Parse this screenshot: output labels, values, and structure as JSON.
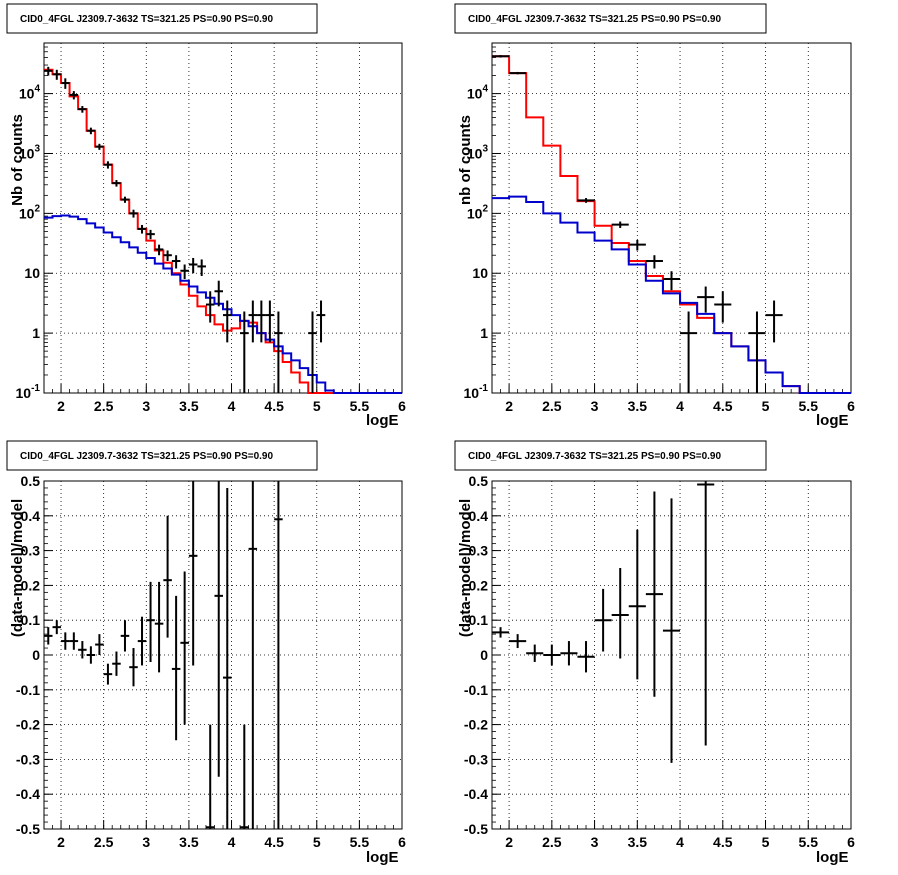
{
  "chart_data": [
    {
      "type": "histogram",
      "title": "CID0_4FGL J2309.7-3632 TS=321.25 PS=0.90 PS=0.90",
      "xlabel": "logE",
      "ylabel": "Nb of counts",
      "yscale": "log",
      "xlim": [
        1.8,
        6.0
      ],
      "ylim": [
        0.1,
        70000
      ],
      "x_ticks": [
        "2",
        "2.5",
        "3",
        "3.5",
        "4",
        "4.5",
        "5",
        "5.5",
        "6"
      ],
      "y_ticks": [
        "10^-1",
        "1",
        "10",
        "10^2",
        "10^3",
        "10^4"
      ],
      "grid": true,
      "bin_edges": [
        1.8,
        1.9,
        2.0,
        2.1,
        2.2,
        2.3,
        2.4,
        2.5,
        2.6,
        2.7,
        2.8,
        2.9,
        3.0,
        3.1,
        3.2,
        3.3,
        3.4,
        3.5,
        3.6,
        3.7,
        3.8,
        3.9,
        4.0,
        4.1,
        4.2,
        4.3,
        4.4,
        4.5,
        4.6,
        4.7,
        4.8,
        4.9,
        5.0,
        5.1,
        5.2,
        5.3,
        5.4,
        5.5,
        5.6,
        5.7,
        5.8,
        5.9,
        6.0
      ],
      "series": [
        {
          "color": "#ff0000",
          "values": [
            25000,
            21000,
            15000,
            9000,
            5500,
            2400,
            1300,
            650,
            320,
            170,
            100,
            55,
            35,
            24,
            15,
            10,
            6.5,
            4.2,
            2.8,
            2.0,
            1.4,
            1.1,
            1.2,
            1.6,
            1.5,
            1.0,
            0.7,
            0.5,
            0.33,
            0.22,
            0.15,
            0.1,
            0.1,
            0.1,
            0.1,
            0.1,
            0.1,
            0.1,
            0.1,
            0.1,
            0.1,
            0.1
          ]
        },
        {
          "color": "#0000cc",
          "values": [
            85,
            90,
            92,
            88,
            80,
            68,
            58,
            48,
            40,
            33,
            27,
            22,
            18,
            14.5,
            12,
            9.5,
            7.5,
            6,
            4.8,
            3.9,
            3.1,
            2.5,
            2.0,
            1.6,
            1.3,
            1.0,
            0.78,
            0.6,
            0.46,
            0.35,
            0.26,
            0.2,
            0.15,
            0.11,
            0.1,
            0.1,
            0.1,
            0.1,
            0.1,
            0.1,
            0.1,
            0.1
          ]
        }
      ],
      "data_points": [
        {
          "x": 1.85,
          "y": 24000,
          "lo": 20000,
          "hi": 28000
        },
        {
          "x": 1.95,
          "y": 21000,
          "lo": 17000,
          "hi": 25000
        },
        {
          "x": 2.05,
          "y": 15000,
          "lo": 12000,
          "hi": 18000
        },
        {
          "x": 2.15,
          "y": 9500,
          "lo": 8000,
          "hi": 11000
        },
        {
          "x": 2.25,
          "y": 5500,
          "lo": 4800,
          "hi": 6200
        },
        {
          "x": 2.35,
          "y": 2400,
          "lo": 2100,
          "hi": 2700
        },
        {
          "x": 2.45,
          "y": 1300,
          "lo": 1150,
          "hi": 1450
        },
        {
          "x": 2.55,
          "y": 650,
          "lo": 560,
          "hi": 740
        },
        {
          "x": 2.65,
          "y": 320,
          "lo": 280,
          "hi": 360
        },
        {
          "x": 2.75,
          "y": 170,
          "lo": 150,
          "hi": 190
        },
        {
          "x": 2.85,
          "y": 100,
          "lo": 85,
          "hi": 115
        },
        {
          "x": 2.95,
          "y": 55,
          "lo": 46,
          "hi": 64
        },
        {
          "x": 3.05,
          "y": 45,
          "lo": 37,
          "hi": 53
        },
        {
          "x": 3.15,
          "y": 25,
          "lo": 20,
          "hi": 30
        },
        {
          "x": 3.25,
          "y": 20,
          "lo": 16,
          "hi": 24
        },
        {
          "x": 3.35,
          "y": 16,
          "lo": 12,
          "hi": 20
        },
        {
          "x": 3.45,
          "y": 11,
          "lo": 8,
          "hi": 14
        },
        {
          "x": 3.55,
          "y": 14,
          "lo": 10,
          "hi": 18
        },
        {
          "x": 3.65,
          "y": 13,
          "lo": 9,
          "hi": 17
        },
        {
          "x": 3.75,
          "y": 3,
          "lo": 1.5,
          "hi": 5
        },
        {
          "x": 3.85,
          "y": 5,
          "lo": 2.8,
          "hi": 7.5
        },
        {
          "x": 3.95,
          "y": 2,
          "lo": 0.7,
          "hi": 3.5
        },
        {
          "x": 4.15,
          "y": 1,
          "lo": 0.1,
          "hi": 2.3
        },
        {
          "x": 4.25,
          "y": 2,
          "lo": 0.7,
          "hi": 3.5
        },
        {
          "x": 4.35,
          "y": 2,
          "lo": 0.7,
          "hi": 3.5
        },
        {
          "x": 4.45,
          "y": 2,
          "lo": 0.7,
          "hi": 3.5
        },
        {
          "x": 4.55,
          "y": 1,
          "lo": 0.1,
          "hi": 2.3
        },
        {
          "x": 4.95,
          "y": 1,
          "lo": 0.1,
          "hi": 2.3
        },
        {
          "x": 5.05,
          "y": 2,
          "lo": 0.7,
          "hi": 3.5
        }
      ]
    },
    {
      "type": "histogram",
      "title": "CID0_4FGL J2309.7-3632 TS=321.25 PS=0.90 PS=0.90",
      "xlabel": "logE",
      "ylabel": "nb of counts",
      "yscale": "log",
      "xlim": [
        1.8,
        6.0
      ],
      "ylim": [
        0.1,
        70000
      ],
      "x_ticks": [
        "2",
        "2.5",
        "3",
        "3.5",
        "4",
        "4.5",
        "5",
        "5.5",
        "6"
      ],
      "y_ticks": [
        "10^-1",
        "1",
        "10",
        "10^2",
        "10^3",
        "10^4"
      ],
      "grid": true,
      "bin_edges": [
        1.8,
        2.0,
        2.2,
        2.4,
        2.6,
        2.8,
        3.0,
        3.2,
        3.4,
        3.6,
        3.8,
        4.0,
        4.2,
        4.4,
        4.6,
        4.8,
        5.0,
        5.2,
        5.4,
        5.6,
        5.8,
        6.0
      ],
      "series": [
        {
          "color": "#ff0000",
          "values": [
            42000,
            22000,
            4000,
            1350,
            420,
            160,
            62,
            32,
            16,
            9,
            5,
            3,
            1.8,
            1.0,
            0.6,
            0.35,
            0.22,
            0.13,
            0.1,
            0.1,
            0.1
          ]
        },
        {
          "color": "#0000cc",
          "values": [
            180,
            190,
            155,
            100,
            70,
            48,
            35,
            25,
            14,
            7.5,
            4.6,
            3.2,
            2.1,
            1.0,
            0.6,
            0.35,
            0.22,
            0.13,
            0.1,
            0.1,
            0.1
          ]
        }
      ],
      "data_points": [
        {
          "x": 1.9,
          "y": 42000,
          "lo": 40000,
          "hi": 44000
        },
        {
          "x": 2.1,
          "y": 22000,
          "lo": 21000,
          "hi": 23000
        },
        {
          "x": 2.9,
          "y": 165,
          "lo": 150,
          "hi": 180
        },
        {
          "x": 3.3,
          "y": 65,
          "lo": 57,
          "hi": 73
        },
        {
          "x": 3.5,
          "y": 30,
          "lo": 24,
          "hi": 36
        },
        {
          "x": 3.7,
          "y": 16,
          "lo": 12,
          "hi": 20
        },
        {
          "x": 3.9,
          "y": 8,
          "lo": 5.2,
          "hi": 10.8
        },
        {
          "x": 4.1,
          "y": 1,
          "lo": 0.1,
          "hi": 2.3
        },
        {
          "x": 4.3,
          "y": 4,
          "lo": 2.2,
          "hi": 6
        },
        {
          "x": 4.5,
          "y": 3,
          "lo": 1.5,
          "hi": 5
        },
        {
          "x": 4.9,
          "y": 1,
          "lo": 0.1,
          "hi": 2.3
        },
        {
          "x": 5.1,
          "y": 2,
          "lo": 0.7,
          "hi": 3.5
        }
      ]
    },
    {
      "type": "scatter",
      "title": "CID0_4FGL J2309.7-3632 TS=321.25 PS=0.90 PS=0.90",
      "xlabel": "logE",
      "ylabel": "(data-model)/model",
      "xlim": [
        1.8,
        6.0
      ],
      "ylim": [
        -0.5,
        0.5
      ],
      "x_ticks": [
        "2",
        "2.5",
        "3",
        "3.5",
        "4",
        "4.5",
        "5",
        "5.5",
        "6"
      ],
      "y_ticks": [
        "-0.5",
        "-0.4",
        "-0.3",
        "-0.2",
        "-0.1",
        "0",
        "0.1",
        "0.2",
        "0.3",
        "0.4",
        "0.5"
      ],
      "grid": true,
      "xerr": 0.05,
      "data_points": [
        {
          "x": 1.85,
          "y": 0.055,
          "lo": 0.03,
          "hi": 0.08
        },
        {
          "x": 1.95,
          "y": 0.08,
          "lo": 0.06,
          "hi": 0.1
        },
        {
          "x": 2.05,
          "y": 0.04,
          "lo": 0.015,
          "hi": 0.065
        },
        {
          "x": 2.15,
          "y": 0.04,
          "lo": 0.015,
          "hi": 0.065
        },
        {
          "x": 2.25,
          "y": 0.015,
          "lo": -0.01,
          "hi": 0.04
        },
        {
          "x": 2.35,
          "y": 0.0,
          "lo": -0.025,
          "hi": 0.025
        },
        {
          "x": 2.45,
          "y": 0.03,
          "lo": 0.0,
          "hi": 0.06
        },
        {
          "x": 2.55,
          "y": -0.055,
          "lo": -0.085,
          "hi": -0.025
        },
        {
          "x": 2.65,
          "y": -0.025,
          "lo": -0.06,
          "hi": 0.01
        },
        {
          "x": 2.75,
          "y": 0.055,
          "lo": 0.01,
          "hi": 0.1
        },
        {
          "x": 2.85,
          "y": -0.035,
          "lo": -0.09,
          "hi": 0.02
        },
        {
          "x": 2.95,
          "y": 0.04,
          "lo": -0.03,
          "hi": 0.11
        },
        {
          "x": 3.05,
          "y": 0.1,
          "lo": -0.02,
          "hi": 0.21
        },
        {
          "x": 3.15,
          "y": 0.09,
          "lo": -0.05,
          "hi": 0.21
        },
        {
          "x": 3.25,
          "y": 0.215,
          "lo": 0.05,
          "hi": 0.4
        },
        {
          "x": 3.35,
          "y": -0.04,
          "lo": -0.245,
          "hi": 0.17
        },
        {
          "x": 3.45,
          "y": 0.035,
          "lo": -0.2,
          "hi": 0.24
        },
        {
          "x": 3.55,
          "y": 0.285,
          "lo": -0.03,
          "hi": 0.5
        },
        {
          "x": 3.75,
          "y": -0.495,
          "lo": -0.5,
          "hi": -0.2
        },
        {
          "x": 3.85,
          "y": 0.17,
          "lo": -0.35,
          "hi": 0.5
        },
        {
          "x": 3.95,
          "y": -0.065,
          "lo": -0.5,
          "hi": 0.48
        },
        {
          "x": 4.15,
          "y": -0.495,
          "lo": -0.5,
          "hi": -0.2
        },
        {
          "x": 4.25,
          "y": 0.305,
          "lo": -0.5,
          "hi": 0.5
        },
        {
          "x": 4.55,
          "y": 0.39,
          "lo": -0.5,
          "hi": 0.5
        }
      ]
    },
    {
      "type": "scatter",
      "title": "CID0_4FGL J2309.7-3632 TS=321.25 PS=0.90 PS=0.90",
      "xlabel": "logE",
      "ylabel": "(data-model)/model",
      "xlim": [
        1.8,
        6.0
      ],
      "ylim": [
        -0.5,
        0.5
      ],
      "x_ticks": [
        "2",
        "2.5",
        "3",
        "3.5",
        "4",
        "4.5",
        "5",
        "5.5",
        "6"
      ],
      "y_ticks": [
        "-0.5",
        "-0.4",
        "-0.3",
        "-0.2",
        "-0.1",
        "0",
        "0.1",
        "0.2",
        "0.3",
        "0.4",
        "0.5"
      ],
      "grid": true,
      "xerr": 0.1,
      "data_points": [
        {
          "x": 1.9,
          "y": 0.065,
          "lo": 0.05,
          "hi": 0.08
        },
        {
          "x": 2.1,
          "y": 0.04,
          "lo": 0.02,
          "hi": 0.06
        },
        {
          "x": 2.3,
          "y": 0.005,
          "lo": -0.02,
          "hi": 0.03
        },
        {
          "x": 2.5,
          "y": 0.0,
          "lo": -0.03,
          "hi": 0.03
        },
        {
          "x": 2.7,
          "y": 0.005,
          "lo": -0.03,
          "hi": 0.04
        },
        {
          "x": 2.9,
          "y": -0.005,
          "lo": -0.05,
          "hi": 0.04
        },
        {
          "x": 3.1,
          "y": 0.1,
          "lo": 0.01,
          "hi": 0.19
        },
        {
          "x": 3.3,
          "y": 0.115,
          "lo": -0.01,
          "hi": 0.25
        },
        {
          "x": 3.5,
          "y": 0.14,
          "lo": -0.07,
          "hi": 0.36
        },
        {
          "x": 3.7,
          "y": 0.175,
          "lo": -0.12,
          "hi": 0.47
        },
        {
          "x": 3.9,
          "y": 0.07,
          "lo": -0.31,
          "hi": 0.45
        },
        {
          "x": 4.3,
          "y": 0.49,
          "lo": -0.26,
          "hi": 0.5
        }
      ]
    }
  ]
}
